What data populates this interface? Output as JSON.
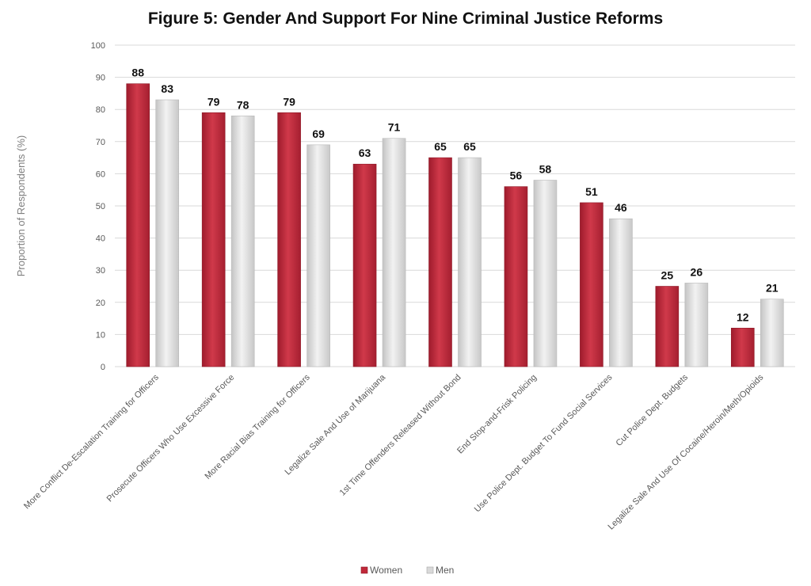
{
  "chart_data": {
    "type": "bar",
    "title": "Figure 5: Gender And Support For Nine Criminal Justice Reforms",
    "xlabel": "",
    "ylabel": "Proportion of Respondents (%)",
    "ylim": [
      0,
      100
    ],
    "yticks": [
      "0",
      "10",
      "20",
      "30",
      "40",
      "50",
      "60",
      "70",
      "80",
      "90",
      "100"
    ],
    "grid": true,
    "legend_position": "bottom",
    "categories": [
      "More Conflict De-Escalation Training for Officers",
      "Prosecute Officers Who Use Excessive Force",
      "More Racial Bias Training for Officers",
      "Legalize Sale And Use of Marijuana",
      "1st Time Offenders Released Without Bond",
      "End Stop-and-Frisk Policing",
      "Use Police Dept. Budget To Fund Social Services",
      "Cut Police Dept. Budgets",
      "Legalize Sale And Use Of Cocaine/Heroin/Meth/Opioids"
    ],
    "series": [
      {
        "name": "Women",
        "color": "#c0283a",
        "values": [
          88,
          79,
          79,
          63,
          65,
          56,
          51,
          25,
          12
        ]
      },
      {
        "name": "Men",
        "color": "#d9d9d9",
        "values": [
          83,
          78,
          69,
          71,
          65,
          58,
          46,
          26,
          21
        ]
      }
    ]
  }
}
